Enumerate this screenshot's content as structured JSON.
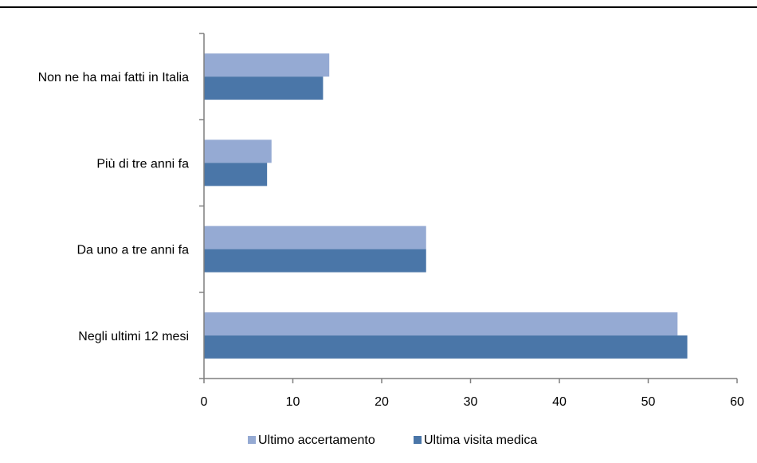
{
  "chart_data": {
    "type": "bar",
    "orientation": "horizontal",
    "categories": [
      "Non ne ha mai fatti  in Italia",
      "Più di tre anni fa",
      "Da uno a tre anni fa",
      "Negli ultimi 12 mesi"
    ],
    "series": [
      {
        "name": "Ultimo accertamento",
        "color": "#95aad3",
        "values": [
          14.1,
          7.6,
          25.0,
          53.3
        ]
      },
      {
        "name": "Ultima visita medica",
        "color": "#4a76a8",
        "values": [
          13.4,
          7.1,
          25.0,
          54.4
        ]
      }
    ],
    "xlim": [
      0,
      60
    ],
    "xticks": [
      "0",
      "10",
      "20",
      "30",
      "40",
      "50",
      "60"
    ],
    "grid": false,
    "legend": "bottom",
    "title": "",
    "xlabel": "",
    "ylabel": ""
  }
}
